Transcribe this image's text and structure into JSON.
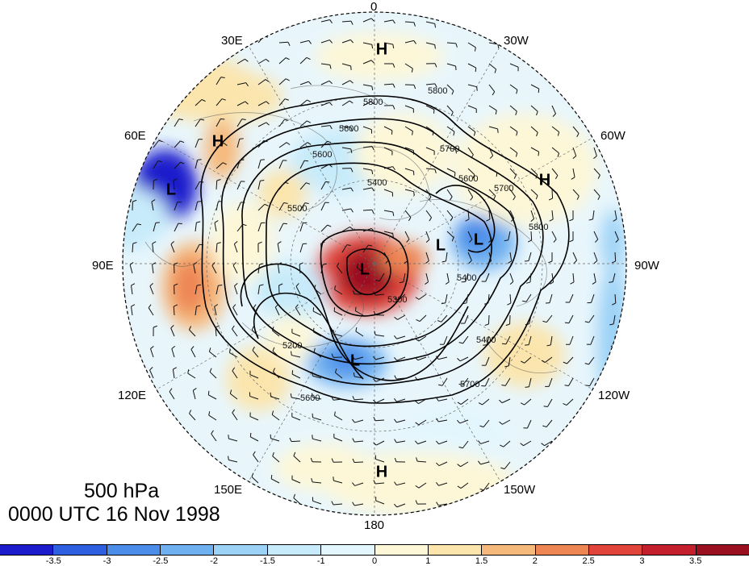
{
  "map": {
    "level": "500 hPa",
    "valid_time": "0000 UTC 16 Nov 1998",
    "longitude_labels": [
      "0",
      "30W",
      "60W",
      "90W",
      "120W",
      "150W",
      "180",
      "150E",
      "120E",
      "90E",
      "60E",
      "30E"
    ],
    "contour_labels": [
      "5800",
      "5800",
      "5700",
      "5600",
      "5500",
      "5400",
      "5300",
      "5200",
      "5600",
      "5700",
      "5800",
      "5600",
      "5400",
      "5400",
      "5700",
      "5600"
    ],
    "pressure_centers": [
      "H",
      "H",
      "H",
      "H",
      "L",
      "L",
      "L",
      "L",
      "L"
    ]
  },
  "colorbar": {
    "ticks": [
      "-3.5",
      "-3",
      "-2.5",
      "-2",
      "-1.5",
      "-1",
      "0",
      "1",
      "1.5",
      "2",
      "2.5",
      "3",
      "3.5"
    ],
    "colors": [
      "#1c1ccc",
      "#2d5fe0",
      "#4b8de9",
      "#6fb1f0",
      "#9cd2f6",
      "#c7ebfa",
      "#e4f6fd",
      "#fdf7d8",
      "#fbe5ad",
      "#f6b97c",
      "#ee8654",
      "#e0443a",
      "#c41f2c",
      "#9b1020"
    ]
  }
}
